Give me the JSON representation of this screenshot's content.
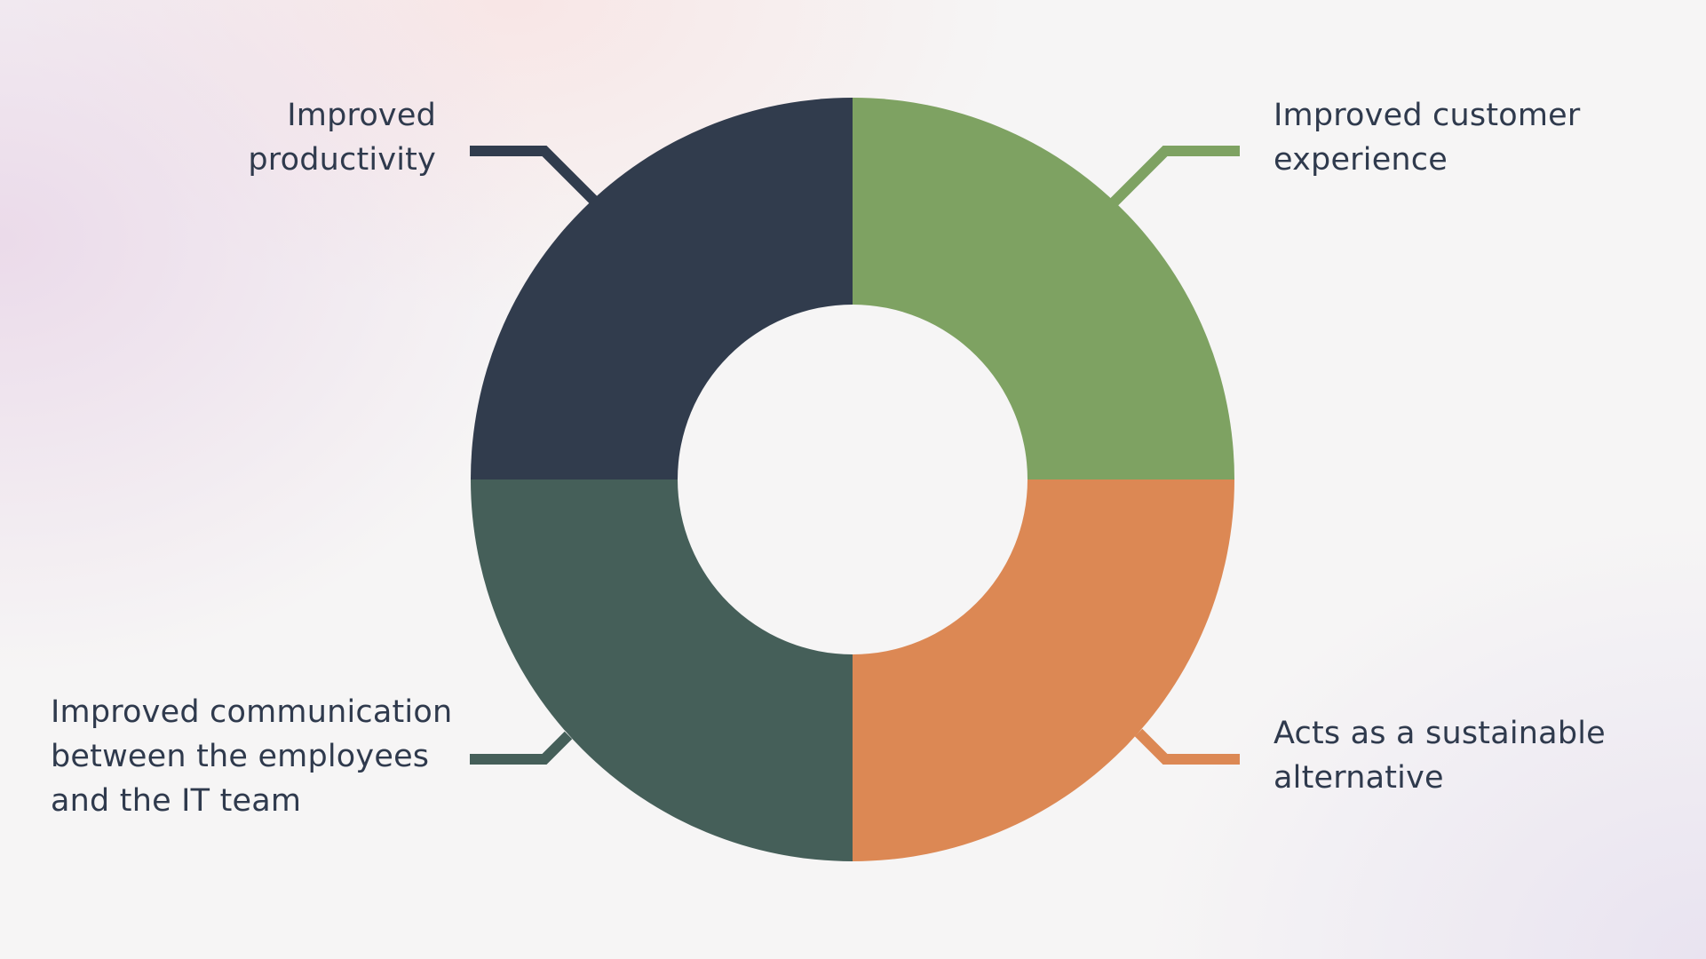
{
  "colors": {
    "background": "#f6f5f5",
    "text": "#2f3a4d",
    "productivity": "#313c4d",
    "customer_experience": "#7ea262",
    "sustainable": "#dc8854",
    "communication": "#455f59",
    "center": "#f6f5f5"
  },
  "segments": [
    {
      "key": "productivity",
      "lines": [
        "Improved",
        "productivity"
      ],
      "color": "#313c4d",
      "value": 25
    },
    {
      "key": "customer_experience",
      "lines": [
        "Improved customer",
        "experience"
      ],
      "color": "#7ea262",
      "value": 25
    },
    {
      "key": "sustainable",
      "lines": [
        "Acts as a sustainable",
        "alternative"
      ],
      "color": "#dc8854",
      "value": 25
    },
    {
      "key": "communication",
      "lines": [
        "Improved communication",
        "between the employees",
        "and the IT team"
      ],
      "color": "#455f59",
      "value": 25
    }
  ]
}
